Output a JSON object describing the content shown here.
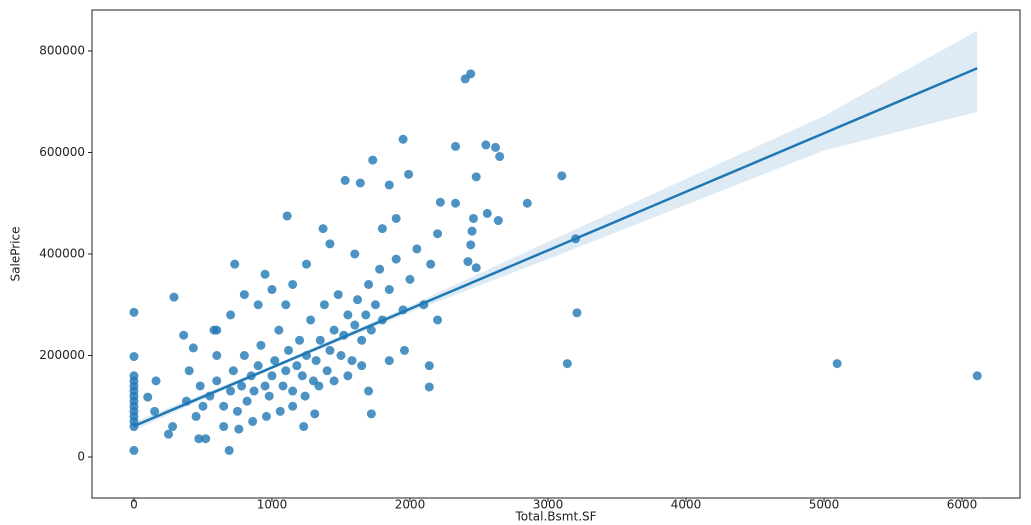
{
  "chart_data": {
    "type": "scatter",
    "x_label": "Total.Bsmt.SF",
    "y_label": "SalePrice",
    "color": "#1f77b4",
    "xlim": [
      -304,
      6420
    ],
    "ylim": [
      -80800,
      880800
    ],
    "xticks": [
      0,
      1000,
      2000,
      3000,
      4000,
      5000,
      6000
    ],
    "yticks": [
      0,
      200000,
      400000,
      600000,
      800000
    ],
    "x": [
      550,
      600,
      650,
      700,
      720,
      750,
      780,
      800,
      820,
      850,
      870,
      900,
      920,
      950,
      980,
      1000,
      1020,
      1050,
      1080,
      1100,
      1120,
      1150,
      1180,
      1200,
      1220,
      1250,
      1280,
      1300,
      1320,
      1350,
      1380,
      1400,
      1420,
      1450,
      1480,
      1500,
      1520,
      1550,
      1580,
      1600,
      1620,
      1650,
      1680,
      1700,
      1720,
      1750,
      1780,
      1800,
      1850,
      1900,
      1950,
      2000,
      2050,
      2100,
      2150,
      2200,
      500,
      480,
      450,
      400,
      380,
      650,
      760,
      860,
      960,
      1060,
      1150,
      1240,
      1340,
      1450,
      1550,
      1650,
      1420,
      1370,
      1600,
      1800,
      1900,
      1250,
      1000,
      900,
      1150,
      1960,
      1700,
      1850,
      600,
      700,
      800,
      950,
      1100,
      0,
      0,
      0,
      0,
      0,
      0,
      0,
      0,
      0,
      0,
      0,
      0,
      0,
      0,
      2400,
      2440,
      6110,
      5095,
      3200,
      3210,
      3140,
      3100,
      2850,
      2650,
      2620,
      2550,
      2560,
      2640,
      2480,
      2460,
      2450,
      2480,
      2420,
      2440,
      2330,
      1950,
      1990,
      1730,
      1850,
      1530,
      1640,
      1110,
      730,
      290,
      2330,
      2220,
      2200,
      2140,
      2140,
      1720,
      1310,
      1230,
      690,
      470,
      520,
      360,
      430,
      160,
      150,
      100,
      250,
      280,
      580,
      600
    ],
    "values": [
      120000,
      150000,
      100000,
      130000,
      170000,
      90000,
      140000,
      200000,
      110000,
      160000,
      130000,
      180000,
      220000,
      140000,
      120000,
      160000,
      190000,
      250000,
      140000,
      170000,
      210000,
      130000,
      180000,
      230000,
      160000,
      200000,
      270000,
      150000,
      190000,
      230000,
      300000,
      170000,
      210000,
      250000,
      320000,
      200000,
      240000,
      280000,
      190000,
      260000,
      310000,
      230000,
      280000,
      340000,
      250000,
      300000,
      370000,
      270000,
      330000,
      390000,
      290000,
      350000,
      410000,
      300000,
      380000,
      270000,
      100000,
      140000,
      80000,
      170000,
      110000,
      60000,
      55000,
      70000,
      80000,
      90000,
      100000,
      120000,
      140000,
      150000,
      160000,
      180000,
      420000,
      450000,
      400000,
      450000,
      470000,
      380000,
      330000,
      300000,
      340000,
      210000,
      130000,
      190000,
      250000,
      280000,
      320000,
      360000,
      300000,
      285000,
      198000,
      160000,
      150000,
      140000,
      130000,
      120000,
      110000,
      100000,
      90000,
      80000,
      70000,
      60000,
      13000,
      745000,
      755000,
      160000,
      184000,
      430000,
      284000,
      184000,
      554000,
      500000,
      592000,
      610000,
      615000,
      480000,
      466000,
      552000,
      470000,
      445000,
      373000,
      385000,
      418000,
      612000,
      626000,
      557000,
      585000,
      536000,
      545000,
      540000,
      475000,
      380000,
      315000,
      500000,
      502000,
      440000,
      138000,
      180000,
      85000,
      85000,
      60000,
      13000,
      36000,
      36000,
      240000,
      215000,
      150000,
      90000,
      118000,
      45000,
      60000,
      250000,
      200000
    ],
    "regression": {
      "x": [
        0,
        1000,
        2000,
        3000,
        4000,
        5000,
        6110
      ],
      "values": [
        61000,
        176400,
        291800,
        407200,
        522600,
        638000,
        766000
      ],
      "ci_lower": [
        53000,
        173000,
        285000,
        390000,
        497000,
        604000,
        680000
      ],
      "ci_upper": [
        69000,
        180000,
        298000,
        424000,
        548000,
        672000,
        840000
      ]
    }
  }
}
